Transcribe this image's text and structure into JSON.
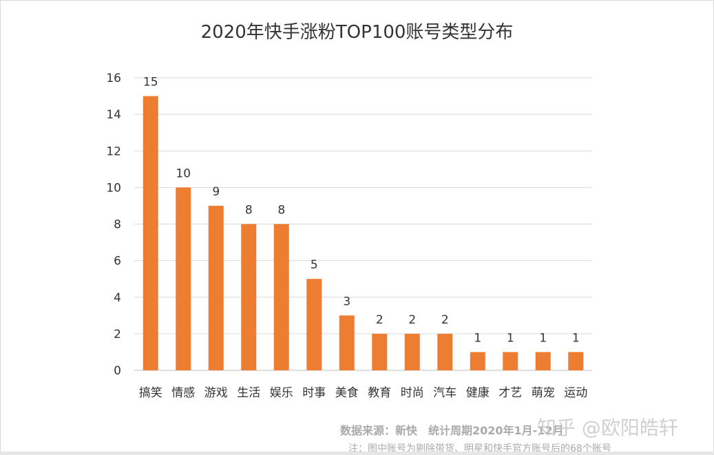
{
  "chart_data": {
    "type": "bar",
    "title": "2020年快手涨粉TOP100账号类型分布",
    "categories": [
      "搞笑",
      "情感",
      "游戏",
      "生活",
      "娱乐",
      "时事",
      "美食",
      "教育",
      "时尚",
      "汽车",
      "健康",
      "才艺",
      "萌宠",
      "运动"
    ],
    "values": [
      15,
      10,
      9,
      8,
      8,
      5,
      3,
      2,
      2,
      2,
      1,
      1,
      1,
      1
    ],
    "ylim": [
      0,
      16
    ],
    "yticks": [
      0,
      2,
      4,
      6,
      8,
      10,
      12,
      14,
      16
    ],
    "xlabel": "",
    "ylabel": "",
    "grid": true,
    "bar_color": "#ed7d31",
    "data_labels": true
  },
  "footer": {
    "source": "数据来源：新快　统计周期2020年1月-12月",
    "note": "注：图中账号为剔除带货、明星和快手官方账号后的68个账号",
    "watermark": "知乎 @欧阳皓轩"
  }
}
